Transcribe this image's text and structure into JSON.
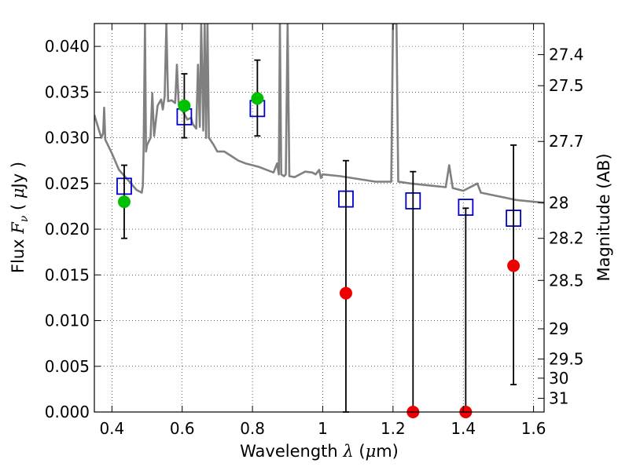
{
  "chart_data": {
    "type": "scatter",
    "title": "",
    "xlabel": {
      "prefix": "Wavelength  ",
      "symbol": "λ",
      "unit_open": " (",
      "unit_mu": "μ",
      "unit_rest": "m)"
    },
    "ylabel": {
      "prefix": "Flux  ",
      "symbol": "F",
      "subscript": "ν",
      "unit_open": "  ( ",
      "unit_mu": "μ",
      "unit_rest": "Jy )"
    },
    "y2label": "Magnitude (AB)",
    "xlim": [
      0.35,
      1.63
    ],
    "ylim": [
      0.0,
      0.0425
    ],
    "grid": true,
    "x_ticks": [
      {
        "value": 0.4,
        "label": "0.4"
      },
      {
        "value": 0.6,
        "label": "0.6"
      },
      {
        "value": 0.8,
        "label": "0.8"
      },
      {
        "value": 1.0,
        "label": "1"
      },
      {
        "value": 1.2,
        "label": "1.2"
      },
      {
        "value": 1.4,
        "label": "1.4"
      },
      {
        "value": 1.6,
        "label": "1.6"
      }
    ],
    "y_ticks": [
      {
        "value": 0.0,
        "label": "0.000"
      },
      {
        "value": 0.005,
        "label": "0.005"
      },
      {
        "value": 0.01,
        "label": "0.010"
      },
      {
        "value": 0.015,
        "label": "0.015"
      },
      {
        "value": 0.02,
        "label": "0.020"
      },
      {
        "value": 0.025,
        "label": "0.025"
      },
      {
        "value": 0.03,
        "label": "0.030"
      },
      {
        "value": 0.035,
        "label": "0.035"
      },
      {
        "value": 0.04,
        "label": "0.040"
      }
    ],
    "mag_ticks": [
      {
        "flux": 0.0391,
        "label": "27.4"
      },
      {
        "flux": 0.0357,
        "label": "27.5"
      },
      {
        "flux": 0.0296,
        "label": "27.7"
      },
      {
        "flux": 0.0229,
        "label": "28"
      },
      {
        "flux": 0.019,
        "label": "28.2"
      },
      {
        "flux": 0.0144,
        "label": "28.5"
      },
      {
        "flux": 0.0091,
        "label": "29"
      },
      {
        "flux": 0.0058,
        "label": "29.5"
      },
      {
        "flux": 0.0037,
        "label": "30"
      },
      {
        "flux": 0.0015,
        "label": "31"
      }
    ],
    "series": [
      {
        "name": "model_spectrum",
        "kind": "line",
        "color": "#808080",
        "points": [
          [
            0.35,
            0.0325
          ],
          [
            0.37,
            0.03
          ],
          [
            0.375,
            0.0305
          ],
          [
            0.378,
            0.0333
          ],
          [
            0.381,
            0.0298
          ],
          [
            0.4,
            0.0283
          ],
          [
            0.42,
            0.0265
          ],
          [
            0.45,
            0.0252
          ],
          [
            0.47,
            0.0243
          ],
          [
            0.485,
            0.024
          ],
          [
            0.488,
            0.0248
          ],
          [
            0.49,
            0.0285
          ],
          [
            0.494,
            0.0425
          ],
          [
            0.497,
            0.0285
          ],
          [
            0.5,
            0.0292
          ],
          [
            0.51,
            0.03
          ],
          [
            0.515,
            0.0349
          ],
          [
            0.52,
            0.0302
          ],
          [
            0.53,
            0.0335
          ],
          [
            0.54,
            0.0342
          ],
          [
            0.545,
            0.0331
          ],
          [
            0.55,
            0.0345
          ],
          [
            0.555,
            0.0425
          ],
          [
            0.56,
            0.034
          ],
          [
            0.57,
            0.0341
          ],
          [
            0.58,
            0.0338
          ],
          [
            0.585,
            0.038
          ],
          [
            0.59,
            0.0336
          ],
          [
            0.6,
            0.033
          ],
          [
            0.615,
            0.032
          ],
          [
            0.625,
            0.0322
          ],
          [
            0.63,
            0.0315
          ],
          [
            0.64,
            0.031
          ],
          [
            0.645,
            0.038
          ],
          [
            0.65,
            0.0312
          ],
          [
            0.654,
            0.0425
          ],
          [
            0.66,
            0.0308
          ],
          [
            0.664,
            0.0425
          ],
          [
            0.668,
            0.03
          ],
          [
            0.672,
            0.0425
          ],
          [
            0.676,
            0.03
          ],
          [
            0.69,
            0.0292
          ],
          [
            0.7,
            0.0285
          ],
          [
            0.72,
            0.0285
          ],
          [
            0.74,
            0.028
          ],
          [
            0.76,
            0.0275
          ],
          [
            0.78,
            0.0272
          ],
          [
            0.8,
            0.027
          ],
          [
            0.82,
            0.0268
          ],
          [
            0.84,
            0.0265
          ],
          [
            0.86,
            0.0262
          ],
          [
            0.87,
            0.0272
          ],
          [
            0.875,
            0.026
          ],
          [
            0.878,
            0.0425
          ],
          [
            0.882,
            0.026
          ],
          [
            0.89,
            0.0258
          ],
          [
            0.895,
            0.026
          ],
          [
            0.9,
            0.0425
          ],
          [
            0.905,
            0.0258
          ],
          [
            0.92,
            0.0257
          ],
          [
            0.95,
            0.0263
          ],
          [
            0.97,
            0.0262
          ],
          [
            0.98,
            0.026
          ],
          [
            0.99,
            0.0265
          ],
          [
            0.995,
            0.0256
          ],
          [
            1.0,
            0.026
          ],
          [
            1.05,
            0.0258
          ],
          [
            1.1,
            0.0255
          ],
          [
            1.15,
            0.0252
          ],
          [
            1.195,
            0.0252
          ],
          [
            1.2,
            0.0425
          ],
          [
            1.21,
            0.0425
          ],
          [
            1.215,
            0.0252
          ],
          [
            1.25,
            0.025
          ],
          [
            1.3,
            0.0248
          ],
          [
            1.35,
            0.0246
          ],
          [
            1.36,
            0.027
          ],
          [
            1.37,
            0.0245
          ],
          [
            1.4,
            0.0242
          ],
          [
            1.44,
            0.025
          ],
          [
            1.45,
            0.024
          ],
          [
            1.5,
            0.0236
          ],
          [
            1.55,
            0.0232
          ],
          [
            1.6,
            0.023
          ],
          [
            1.63,
            0.0229
          ]
        ]
      },
      {
        "name": "model_band_flux",
        "kind": "open_square",
        "color": "#0000cc",
        "points": [
          [
            0.435,
            0.0247
          ],
          [
            0.606,
            0.0323
          ],
          [
            0.814,
            0.0332
          ],
          [
            1.066,
            0.0233
          ],
          [
            1.257,
            0.0231
          ],
          [
            1.407,
            0.0224
          ],
          [
            1.543,
            0.0212
          ]
        ]
      },
      {
        "name": "detections",
        "kind": "filled_circle",
        "color": "#00c000",
        "points": [
          [
            0.435,
            0.023,
            0.027,
            0.019
          ],
          [
            0.606,
            0.0335,
            0.037,
            0.03
          ],
          [
            0.814,
            0.0343,
            0.0385,
            0.0302
          ]
        ]
      },
      {
        "name": "non_detections",
        "kind": "filled_circle",
        "color": "#ee0000",
        "points": [
          [
            1.066,
            0.013,
            0.0275,
            0.0
          ],
          [
            1.257,
            0.0,
            0.0263,
            0.0
          ],
          [
            1.407,
            0.0,
            0.0223,
            0.0
          ],
          [
            1.543,
            0.016,
            0.0292,
            0.003
          ]
        ]
      }
    ]
  }
}
